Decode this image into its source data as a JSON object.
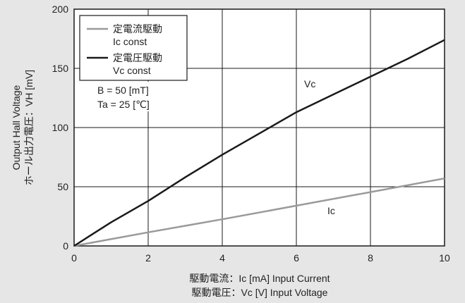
{
  "chart_data": {
    "type": "line",
    "xlabel_lines": [
      "駆動電流：Ic [mA]  Input Current",
      "駆動電圧：Vc [V]  Input Voltage"
    ],
    "ylabel_lines": [
      "Output Hall Voltage",
      "ホール出力電圧：VH [mV]"
    ],
    "xlim": [
      0,
      10
    ],
    "ylim": [
      0,
      200
    ],
    "xticks": [
      "0",
      "2",
      "4",
      "6",
      "8",
      "10"
    ],
    "yticks": [
      "0",
      "50",
      "100",
      "150",
      "200"
    ],
    "grid": true,
    "legend_position": "top-left",
    "series": [
      {
        "name": "定電流駆動",
        "name_sub": "Ic const",
        "label": "Ic",
        "color": "#9a9a9a",
        "x": [
          0,
          2,
          4,
          6,
          8,
          10
        ],
        "y": [
          0,
          11.5,
          22.5,
          34,
          45.5,
          57
        ]
      },
      {
        "name": "定電圧駆動",
        "name_sub": "Vc const",
        "label": "Vc",
        "color": "#1a1a1a",
        "x": [
          0,
          1,
          2,
          3,
          4,
          5,
          6,
          7,
          8,
          9,
          10
        ],
        "y": [
          0,
          20,
          38,
          58,
          77,
          95,
          113,
          128,
          143,
          158,
          174
        ]
      }
    ],
    "conditions": [
      "B = 50 [mT]",
      "Ta = 25 [℃]"
    ]
  }
}
